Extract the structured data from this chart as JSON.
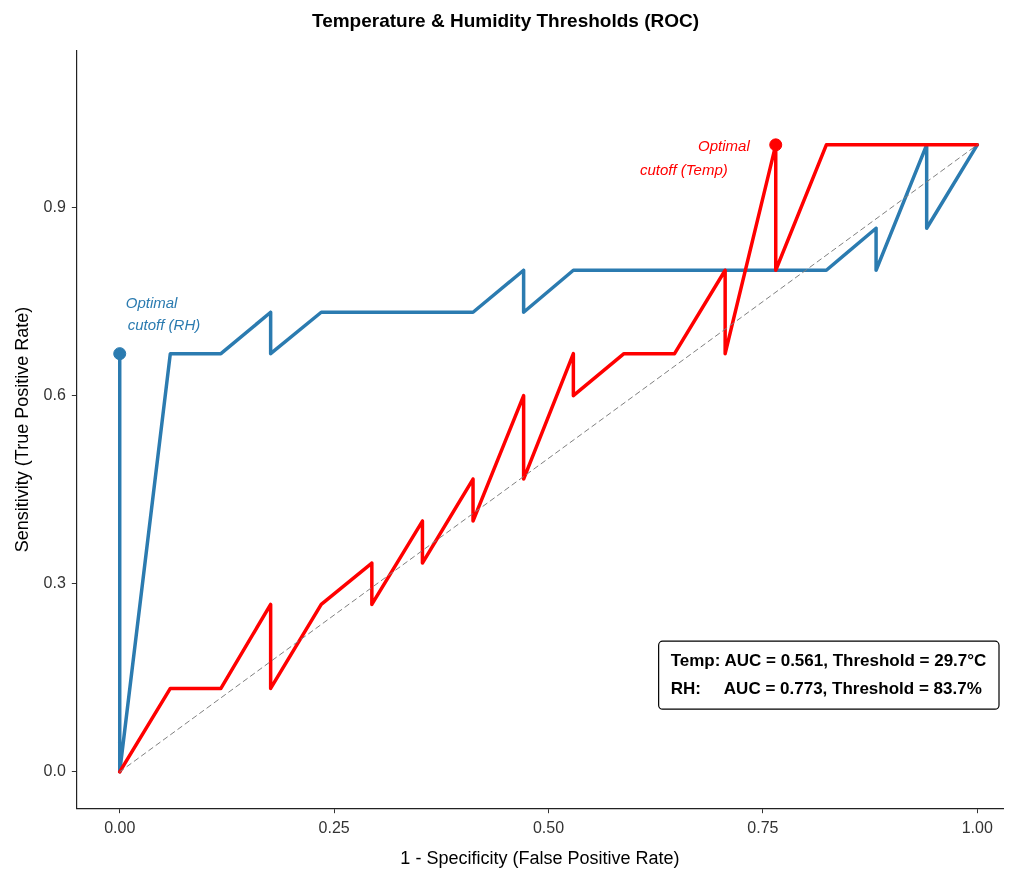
{
  "chart_data": {
    "type": "line",
    "title": "Temperature & Humidity Thresholds (ROC)",
    "xlabel": "1 - Specificity (False Positive Rate)",
    "ylabel": "Sensitivity (True Positive Rate)",
    "xlim": [
      -0.05,
      1.03
    ],
    "ylim": [
      -0.058,
      1.15
    ],
    "xticks": [
      {
        "value": 0,
        "label": "0.00"
      },
      {
        "value": 0.25,
        "label": "0.25"
      },
      {
        "value": 0.5,
        "label": "0.50"
      },
      {
        "value": 0.75,
        "label": "0.75"
      },
      {
        "value": 1,
        "label": "1.00"
      }
    ],
    "yticks": [
      {
        "value": 0,
        "label": "0.0"
      },
      {
        "value": 0.3,
        "label": "0.3"
      },
      {
        "value": 0.6,
        "label": "0.6"
      },
      {
        "value": 0.9,
        "label": "0.9"
      }
    ],
    "grid": false,
    "legend": false,
    "series": [
      {
        "color": "#808080",
        "line_style": "dashed",
        "x": [
          0,
          1
        ],
        "values": [
          0,
          1
        ]
      },
      {
        "color": "#ff0000",
        "line_style": "solid",
        "x": [
          0,
          0.059,
          0.118,
          0.176,
          0.176,
          0.235,
          0.294,
          0.294,
          0.353,
          0.353,
          0.412,
          0.412,
          0.471,
          0.471,
          0.529,
          0.529,
          0.588,
          0.647,
          0.706,
          0.706,
          0.765,
          0.765,
          0.824,
          1
        ],
        "values": [
          0,
          0.133,
          0.133,
          0.267,
          0.133,
          0.267,
          0.333,
          0.267,
          0.4,
          0.333,
          0.467,
          0.4,
          0.6,
          0.467,
          0.667,
          0.6,
          0.667,
          0.667,
          0.8,
          0.667,
          1,
          0.8,
          1,
          1
        ]
      },
      {
        "color": "#2b7bb0",
        "line_style": "solid",
        "x": [
          0,
          0,
          0.059,
          0.118,
          0.176,
          0.176,
          0.235,
          0.412,
          0.471,
          0.471,
          0.529,
          0.824,
          0.882,
          0.882,
          0.941,
          0.941,
          1
        ],
        "values": [
          0.667,
          0,
          0.667,
          0.667,
          0.733,
          0.667,
          0.733,
          0.733,
          0.8,
          0.733,
          0.8,
          0.8,
          0.867,
          0.8,
          1,
          0.867,
          1
        ]
      },
      {
        "type": "scatter",
        "color": "#ff0000",
        "marker": "circle",
        "x": [
          0.765
        ],
        "values": [
          1
        ]
      },
      {
        "type": "scatter",
        "color": "#2b7bb0",
        "marker": "circle",
        "x": [
          0
        ],
        "values": [
          0.667
        ]
      }
    ],
    "annotations": [
      {
        "text": "Optimal\ncutoff (Temp)",
        "x": 0.765,
        "y": 1
      },
      {
        "text": "Optimal\ncutoff (RH)",
        "x": 0,
        "y": 0.667
      },
      "Temp: AUC = 0.561, Threshold = 29.7°C",
      "RH:     AUC = 0.773, Threshold = 83.7%"
    ]
  }
}
